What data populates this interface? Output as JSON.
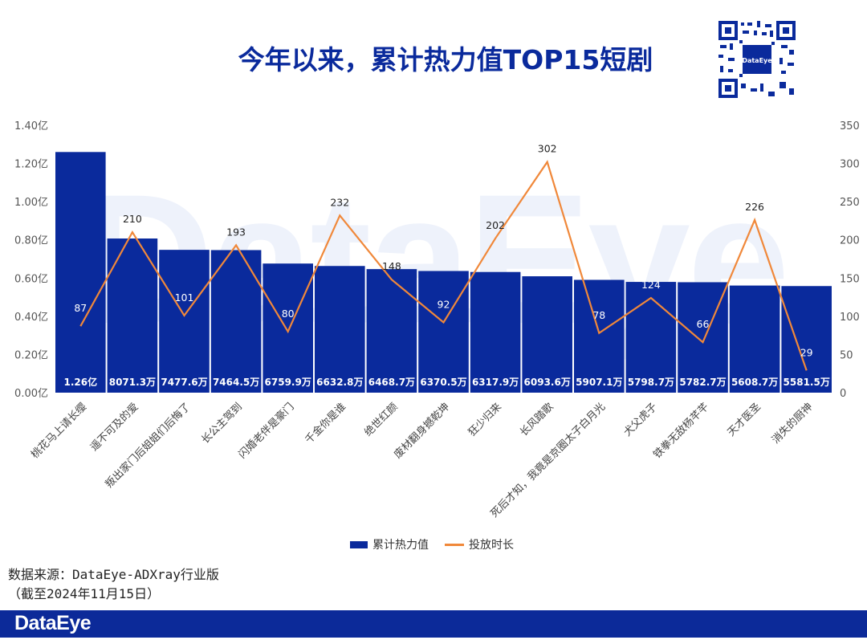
{
  "watermark": "DataEye",
  "title": "今年以来，累计热力值TOP15短剧",
  "qr_label": "DataEye",
  "chart_data": {
    "type": "bar",
    "title": "今年以来，累计热力值TOP15短剧",
    "categories": [
      "桃花马上请长缨",
      "遥不可及的爱",
      "叛出家门后姐姐们后悔了",
      "长公主驾到",
      "闪婚老伴是豪门",
      "千金你是谁",
      "绝世红颜",
      "废材翻身撼乾坤",
      "狂少归来",
      "长风踏歌",
      "死后才知，我竟是京圈太子白月光",
      "犬父虎子",
      "铁拳无敌杨芊芊",
      "天才医圣",
      "消失的厨神"
    ],
    "series": [
      {
        "name": "累计热力值",
        "type": "bar",
        "axis": "left",
        "values": [
          1.26,
          0.80713,
          0.74776,
          0.74645,
          0.67599,
          0.66328,
          0.64687,
          0.63705,
          0.63179,
          0.60936,
          0.59071,
          0.57987,
          0.57827,
          0.56087,
          0.55815
        ],
        "labels": [
          "1.26亿",
          "8071.3万",
          "7477.6万",
          "7464.5万",
          "6759.9万",
          "6632.8万",
          "6468.7万",
          "6370.5万",
          "6317.9万",
          "6093.6万",
          "5907.1万",
          "5798.7万",
          "5782.7万",
          "5608.7万",
          "5581.5万"
        ]
      },
      {
        "name": "投放时长",
        "type": "line",
        "axis": "right",
        "values": [
          87,
          210,
          101,
          193,
          80,
          232,
          148,
          92,
          202,
          302,
          78,
          124,
          66,
          226,
          29
        ]
      }
    ],
    "left_axis": {
      "ticks": [
        "0.00亿",
        "0.20亿",
        "0.40亿",
        "0.60亿",
        "0.80亿",
        "1.00亿",
        "1.20亿",
        "1.40亿"
      ],
      "tick_values": [
        0,
        0.2,
        0.4,
        0.6,
        0.8,
        1.0,
        1.2,
        1.4
      ],
      "ylim": [
        0,
        1.4
      ]
    },
    "right_axis": {
      "ticks": [
        "0",
        "50",
        "100",
        "150",
        "200",
        "250",
        "300",
        "350"
      ],
      "tick_values": [
        0,
        50,
        100,
        150,
        200,
        250,
        300,
        350
      ],
      "ylim": [
        0,
        350
      ]
    },
    "legend_position": "bottom",
    "grid": false,
    "colors": {
      "bar": "#0a2a9c",
      "line": "#f0883a"
    }
  },
  "legend": {
    "bar_label": "累计热力值",
    "line_label": "投放时长"
  },
  "source": {
    "line1": "数据来源：DataEye-ADXray行业版",
    "line2": "（截至2024年11月15日）"
  },
  "footer": {
    "logo": "DataEye"
  }
}
